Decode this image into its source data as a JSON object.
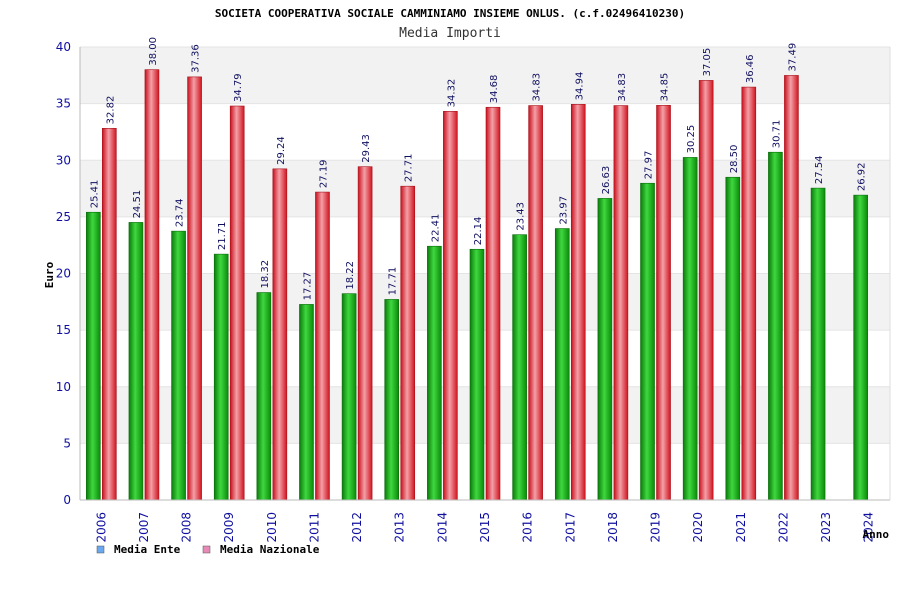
{
  "chart_data": {
    "type": "bar",
    "title": "SOCIETA COOPERATIVA SOCIALE CAMMINIAMO INSIEME ONLUS. (c.f.02496410230)",
    "subtitle": "Media Importi",
    "xlabel": "Anno",
    "ylabel": "Euro",
    "ylim": [
      0,
      40
    ],
    "yticks": [
      0,
      5,
      10,
      15,
      20,
      25,
      30,
      35,
      40
    ],
    "categories": [
      "2006",
      "2007",
      "2008",
      "2009",
      "2010",
      "2011",
      "2012",
      "2013",
      "2014",
      "2015",
      "2016",
      "2017",
      "2018",
      "2019",
      "2020",
      "2021",
      "2022",
      "2023",
      "2024"
    ],
    "series": [
      {
        "name": "Media Ente",
        "color": "#1aa81a",
        "legend_color": "#6aa8f0",
        "values": [
          25.41,
          24.51,
          23.74,
          21.71,
          18.32,
          17.27,
          18.22,
          17.71,
          22.41,
          22.14,
          23.43,
          23.97,
          26.63,
          27.97,
          30.25,
          28.5,
          30.71,
          27.54,
          26.92
        ],
        "labels": [
          "25.41",
          "24.51",
          "23.74",
          "21.71",
          "18.32",
          "17.27",
          "18.22",
          "17.71",
          "22.41",
          "22.14",
          "23.43",
          "23.97",
          "26.63",
          "27.97",
          "30.25",
          "28.50",
          "30.71",
          "27.54",
          "26.92"
        ]
      },
      {
        "name": "Media Nazionale",
        "color": "#e21c2a",
        "legend_color": "#e88ab8",
        "values": [
          32.82,
          38.0,
          37.36,
          34.79,
          29.24,
          27.19,
          29.43,
          27.71,
          34.32,
          34.68,
          34.83,
          34.94,
          34.83,
          34.85,
          37.05,
          36.46,
          37.49,
          null,
          null
        ],
        "labels": [
          "32.82",
          "38.00",
          "37.36",
          "34.79",
          "29.24",
          "27.19",
          "29.43",
          "27.71",
          "34.32",
          "34.68",
          "34.83",
          "34.94",
          "34.83",
          "34.85",
          "37.05",
          "36.46",
          "37.49",
          "",
          ""
        ]
      }
    ],
    "grid": true,
    "legend_position": "bottom-left"
  }
}
